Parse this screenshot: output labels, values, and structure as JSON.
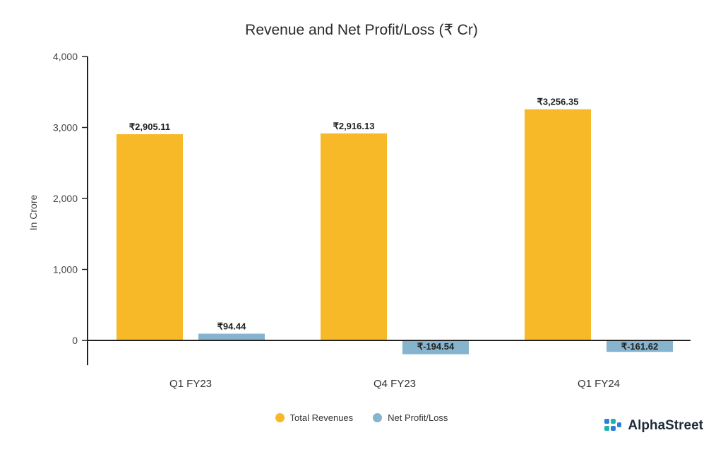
{
  "chart_data": {
    "type": "bar",
    "title": "Revenue and Net Profit/Loss (₹ Cr)",
    "ylabel": "In Crore",
    "xlabel": "",
    "ylim": [
      -350,
      4000
    ],
    "yticks": [
      0,
      1000,
      2000,
      3000,
      4000
    ],
    "ytick_labels": [
      "0",
      "1,000",
      "2,000",
      "3,000",
      "4,000"
    ],
    "categories": [
      "Q1 FY23",
      "Q4 FY23",
      "Q1 FY24"
    ],
    "series": [
      {
        "name": "Total Revenues",
        "color": "#F7B928",
        "values": [
          2905.11,
          2916.13,
          3256.35
        ],
        "labels": [
          "₹2,905.11",
          "₹2,916.13",
          "₹3,256.35"
        ]
      },
      {
        "name": "Net Profit/Loss",
        "color": "#86B3CD",
        "values": [
          94.44,
          -194.54,
          -161.62
        ],
        "labels": [
          "₹94.44",
          "₹-194.54",
          "₹-161.62"
        ]
      }
    ],
    "legend_position": "bottom"
  },
  "brand": {
    "name": "AlphaStreet"
  }
}
